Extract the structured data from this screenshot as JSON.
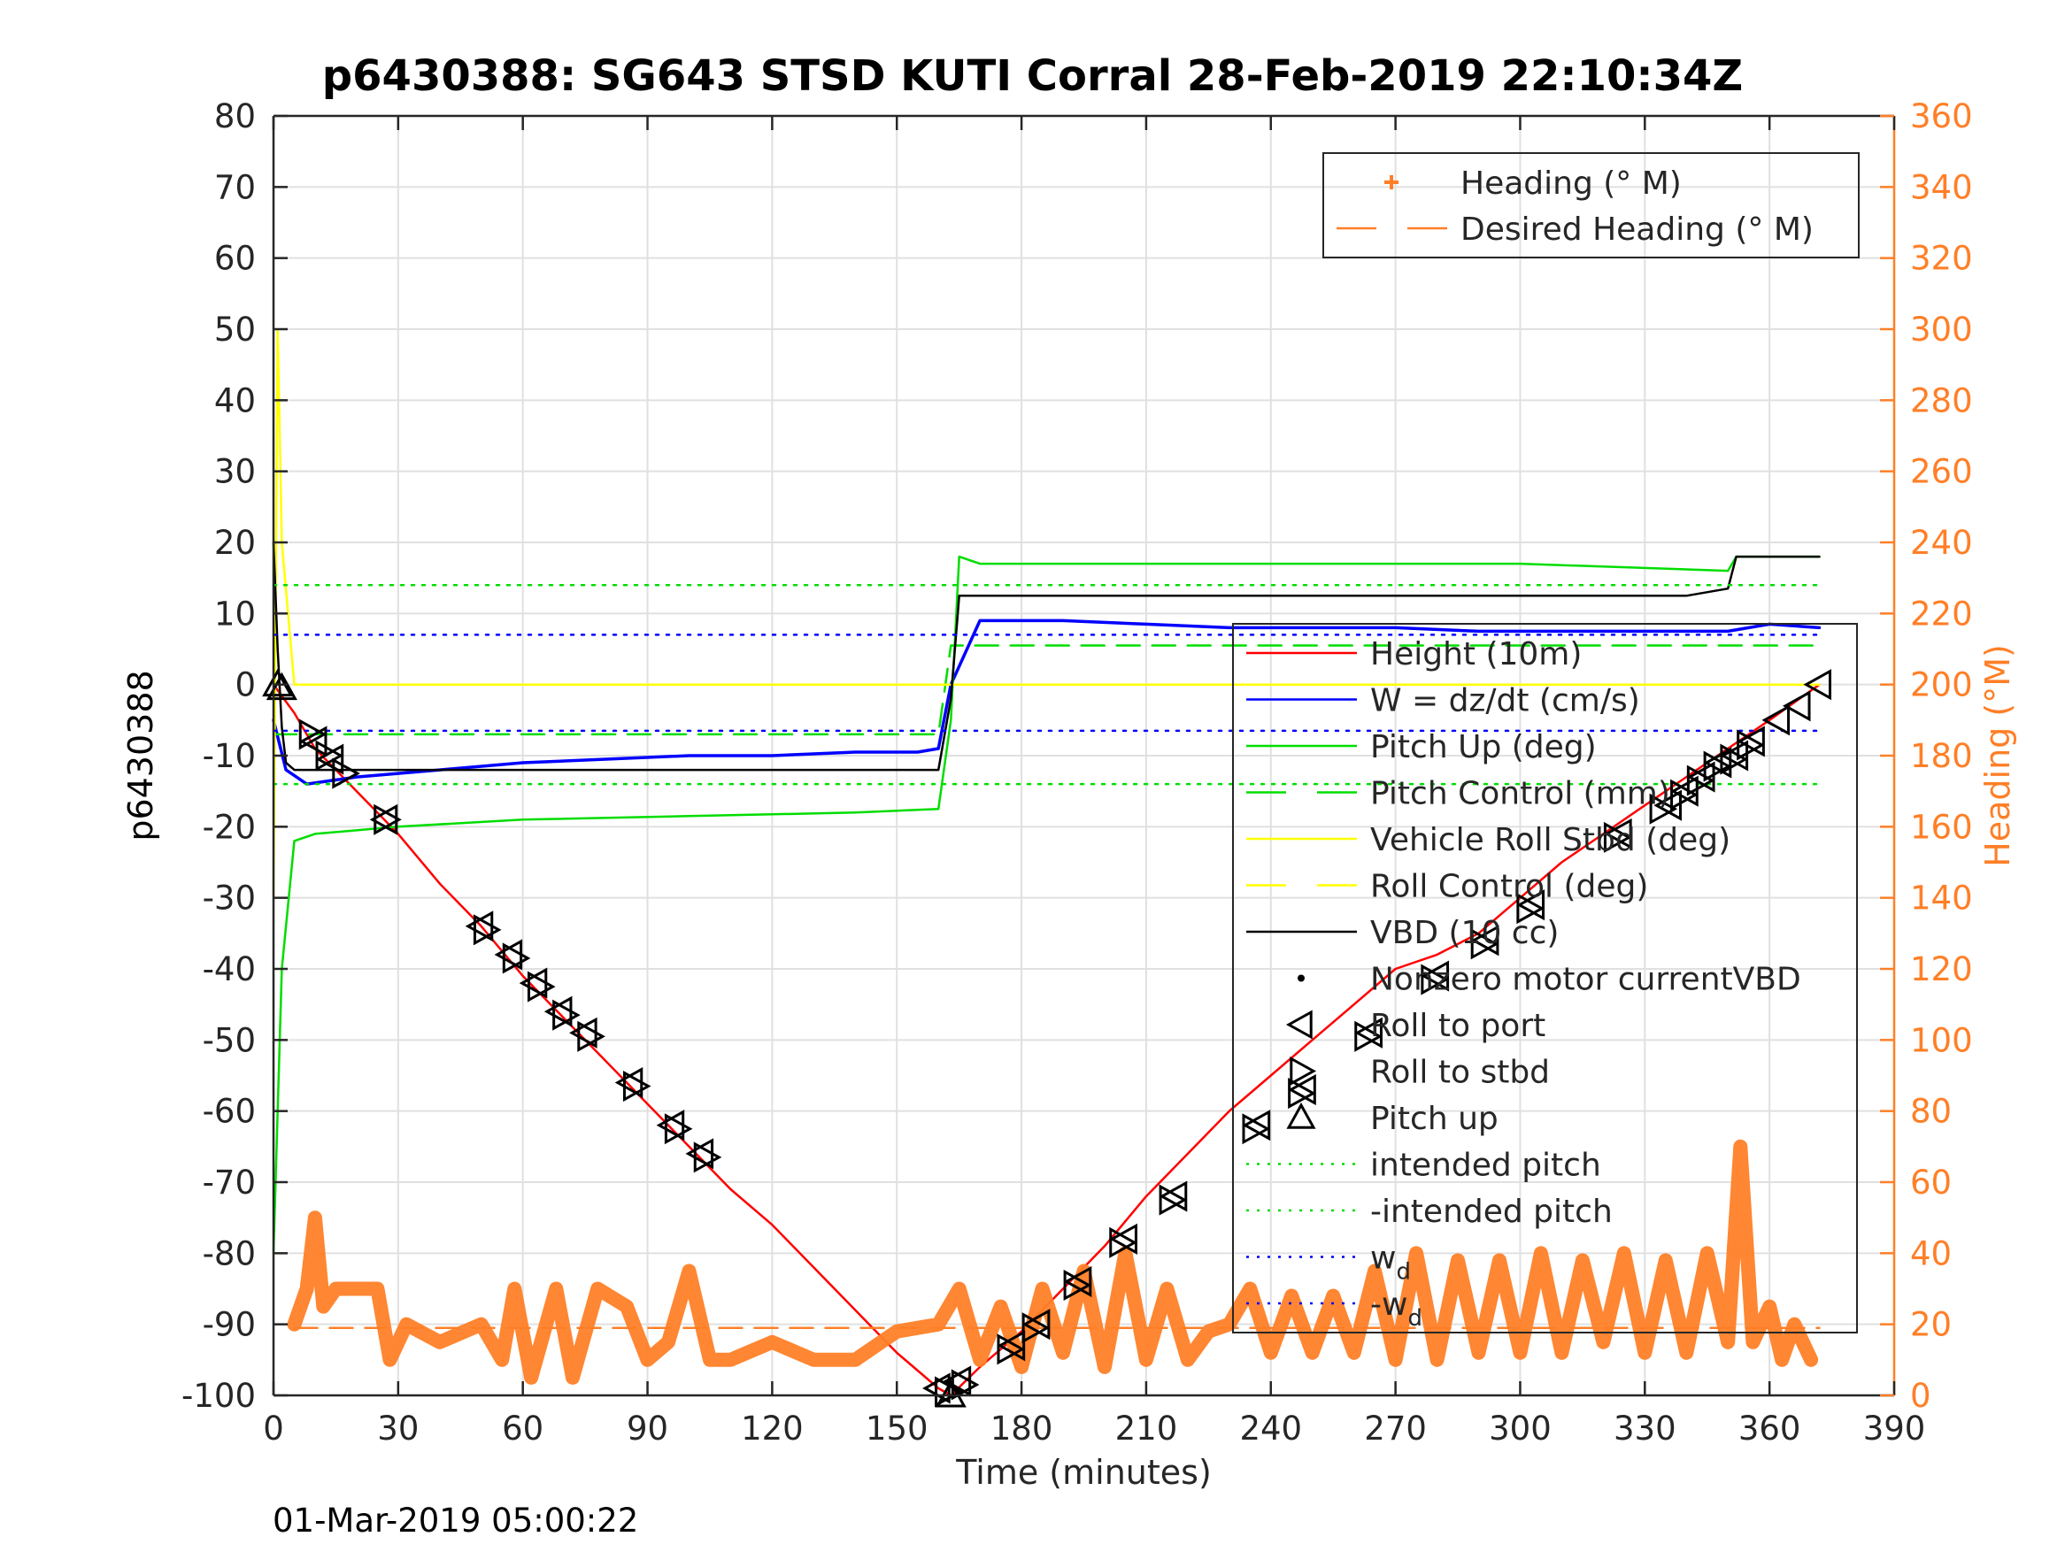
{
  "chart_data": {
    "type": "line",
    "title": "p6430388: SG643 STSD KUTI Corral 28-Feb-2019 22:10:34Z",
    "xlabel": "Time (minutes)",
    "ylabel_left": "p6430388",
    "ylabel_right": "Heading (°M)",
    "footer_text": "01-Mar-2019 05:00:22",
    "xlim": [
      0,
      390
    ],
    "ylim_left": [
      -100,
      80
    ],
    "ylim_right": [
      0,
      360
    ],
    "x_ticks": [
      0,
      30,
      60,
      90,
      120,
      150,
      180,
      210,
      240,
      270,
      300,
      330,
      360,
      390
    ],
    "y_ticks_left": [
      -100,
      -90,
      -80,
      -70,
      -60,
      -50,
      -40,
      -30,
      -20,
      -10,
      0,
      10,
      20,
      30,
      40,
      50,
      60,
      70,
      80
    ],
    "y_ticks_right": [
      0,
      20,
      40,
      60,
      80,
      100,
      120,
      140,
      160,
      180,
      200,
      220,
      240,
      260,
      280,
      300,
      320,
      340,
      360
    ],
    "grid": true,
    "legend_upper": {
      "placement": "top-right",
      "entries": [
        {
          "label": "Heading (° M)",
          "style": "plus",
          "color": "#FF7F27"
        },
        {
          "label": "Desired Heading (° M)",
          "style": "dash",
          "color": "#FF7F27"
        }
      ]
    },
    "legend_lower": {
      "placement": "right",
      "entries": [
        {
          "label": "Height (10m)",
          "style": "solid",
          "color": "#FF0000"
        },
        {
          "label": "W = dz/dt (cm/s)",
          "style": "solid",
          "color": "#0000FF"
        },
        {
          "label": "Pitch Up (deg)",
          "style": "solid",
          "color": "#00DD00"
        },
        {
          "label": "Pitch Control (mm)",
          "style": "dash",
          "color": "#00DD00"
        },
        {
          "label": "Vehicle Roll Stbd (deg)",
          "style": "solid",
          "color": "#FFFF00"
        },
        {
          "label": "Roll Control (deg)",
          "style": "dash",
          "color": "#FFFF00"
        },
        {
          "label": "VBD (10 cc)",
          "style": "solid",
          "color": "#000000"
        },
        {
          "label": "Nonzero motor currentVBD",
          "style": "dot",
          "color": "#000000"
        },
        {
          "label": "Roll to port",
          "style": "tri-left",
          "color": "#000000"
        },
        {
          "label": "Roll to stbd",
          "style": "tri-right",
          "color": "#000000"
        },
        {
          "label": "Pitch up",
          "style": "tri-up",
          "color": "#000000"
        },
        {
          "label": "intended pitch",
          "style": "dotted",
          "color": "#00DD00"
        },
        {
          "label": "-intended pitch",
          "style": "dotted",
          "color": "#00DD00"
        },
        {
          "label": "w",
          "sub": "d",
          "style": "dotted",
          "color": "#0000FF"
        },
        {
          "label": "-w",
          "sub": "d",
          "style": "dotted",
          "color": "#0000FF"
        }
      ]
    },
    "colors": {
      "heading": "#FF7F27",
      "height": "#FF0000",
      "w": "#0000FF",
      "pitch": "#00DD00",
      "roll": "#FFFF00",
      "vbd": "#000000"
    },
    "series": [
      {
        "name": "Height (10m)",
        "axis": "left",
        "color": "#FF0000",
        "x": [
          0,
          5,
          10,
          20,
          30,
          40,
          50,
          60,
          70,
          80,
          90,
          100,
          110,
          120,
          130,
          140,
          150,
          160,
          163,
          170,
          180,
          190,
          200,
          210,
          220,
          230,
          240,
          250,
          260,
          270,
          280,
          290,
          300,
          310,
          320,
          330,
          340,
          350,
          360,
          372
        ],
        "y": [
          0,
          -4,
          -9,
          -15,
          -21,
          -28,
          -34,
          -41,
          -47,
          -53,
          -59,
          -65,
          -71,
          -76,
          -82,
          -88,
          -94,
          -99,
          -100,
          -96,
          -91,
          -85,
          -79,
          -72,
          -66,
          -60,
          -55,
          -50,
          -45,
          -40,
          -38,
          -35,
          -30,
          -25,
          -21,
          -17,
          -13,
          -9,
          -5,
          0
        ]
      },
      {
        "name": "W = dz/dt (cm/s)",
        "axis": "left",
        "color": "#0000FF",
        "x": [
          0,
          3,
          8,
          20,
          40,
          60,
          80,
          100,
          120,
          140,
          155,
          160,
          163,
          170,
          190,
          210,
          230,
          250,
          270,
          290,
          310,
          330,
          350,
          360,
          372
        ],
        "y": [
          -5,
          -12,
          -14,
          -13,
          -12,
          -11,
          -10.5,
          -10,
          -10,
          -9.5,
          -9.5,
          -9,
          0,
          9,
          9,
          8.5,
          8,
          8,
          8,
          7.5,
          7.5,
          7.5,
          7.5,
          8.5,
          8
        ]
      },
      {
        "name": "Pitch Up (deg)",
        "axis": "left",
        "color": "#00DD00",
        "x": [
          0,
          2,
          5,
          10,
          30,
          60,
          100,
          140,
          160,
          163,
          165,
          170,
          200,
          250,
          300,
          350,
          352,
          360,
          372
        ],
        "y": [
          -80,
          -40,
          -22,
          -21,
          -20,
          -19,
          -18.5,
          -18,
          -17.5,
          -5,
          18,
          17,
          17,
          17,
          17,
          16,
          18,
          18,
          18
        ]
      },
      {
        "name": "Pitch Control (mm)",
        "axis": "left",
        "color": "#00DD00",
        "x": [
          0,
          160,
          163,
          372
        ],
        "y": [
          -7,
          -7,
          5.5,
          5.5
        ]
      },
      {
        "name": "Vehicle Roll Stbd (deg)",
        "axis": "left",
        "color": "#FFFF00",
        "x": [
          0,
          1,
          2,
          5,
          10,
          50,
          100,
          160,
          163,
          200,
          250,
          300,
          372
        ],
        "y": [
          -30,
          50,
          20,
          0,
          0,
          0,
          0,
          0,
          0,
          0,
          0,
          0,
          0
        ]
      },
      {
        "name": "VBD (10 cc)",
        "axis": "left",
        "color": "#000000",
        "x": [
          0,
          1,
          2,
          3,
          5,
          10,
          160,
          163,
          165,
          340,
          350,
          352,
          372
        ],
        "y": [
          20,
          5,
          -6,
          -11,
          -12,
          -12,
          -12,
          -2,
          12.5,
          12.5,
          13.5,
          18,
          18
        ]
      },
      {
        "name": "intended pitch",
        "axis": "left",
        "color": "#00DD00",
        "x": [
          0,
          372
        ],
        "y": [
          14,
          14
        ]
      },
      {
        "name": "-intended pitch",
        "axis": "left",
        "color": "#00DD00",
        "x": [
          0,
          372
        ],
        "y": [
          -14,
          -14
        ]
      },
      {
        "name": "w",
        "axis": "left",
        "color": "#0000FF",
        "x": [
          0,
          372
        ],
        "y": [
          7,
          7
        ]
      },
      {
        "name": "-w",
        "axis": "left",
        "color": "#0000FF",
        "x": [
          0,
          372
        ],
        "y": [
          -6.5,
          -6.5
        ]
      },
      {
        "name": "Desired Heading (° M)",
        "axis": "right",
        "color": "#FF7F27",
        "x": [
          5,
          372
        ],
        "y": [
          19,
          19
        ]
      },
      {
        "name": "Heading (° M)",
        "axis": "right",
        "color": "#FF7F27",
        "x": [
          5,
          8,
          10,
          12,
          15,
          20,
          25,
          28,
          32,
          40,
          50,
          55,
          58,
          62,
          68,
          72,
          78,
          85,
          90,
          95,
          100,
          105,
          110,
          120,
          130,
          140,
          150,
          160,
          165,
          170,
          175,
          180,
          185,
          190,
          195,
          200,
          205,
          210,
          215,
          220,
          225,
          230,
          235,
          240,
          245,
          250,
          255,
          260,
          265,
          270,
          275,
          280,
          285,
          290,
          295,
          300,
          305,
          310,
          315,
          320,
          325,
          330,
          335,
          340,
          345,
          350,
          353,
          356,
          360,
          363,
          366,
          370
        ],
        "y": [
          20,
          30,
          50,
          25,
          30,
          30,
          30,
          10,
          20,
          15,
          20,
          10,
          30,
          5,
          30,
          5,
          30,
          25,
          10,
          15,
          35,
          10,
          10,
          15,
          10,
          10,
          18,
          20,
          30,
          10,
          25,
          8,
          30,
          12,
          35,
          8,
          40,
          10,
          30,
          10,
          18,
          20,
          30,
          12,
          28,
          12,
          28,
          12,
          35,
          10,
          40,
          10,
          38,
          12,
          38,
          12,
          40,
          12,
          38,
          15,
          40,
          12,
          38,
          12,
          40,
          15,
          70,
          15,
          25,
          10,
          20,
          10
        ]
      },
      {
        "name": "Roll to port",
        "axis": "left",
        "color": "#000000",
        "x": [
          10,
          14,
          27,
          50,
          57,
          63,
          69,
          75,
          86,
          96,
          103,
          160,
          165,
          178,
          184,
          194,
          205,
          217,
          237,
          248,
          264,
          280,
          292,
          303,
          324,
          336,
          340,
          344,
          348,
          352,
          356,
          362,
          367,
          372
        ],
        "y": [
          -8,
          -10.5,
          -19,
          -34,
          -38,
          -42,
          -46,
          -49,
          -56,
          -62,
          -66,
          -99,
          -98,
          -93,
          -90,
          -84,
          -78,
          -72,
          -62,
          -57,
          -49,
          -41,
          -36,
          -31,
          -21,
          -17,
          -15,
          -13,
          -11,
          -10,
          -8,
          -5,
          -3,
          0
        ]
      },
      {
        "name": "Roll to stbd",
        "axis": "left",
        "color": "#000000",
        "x": [
          9,
          13,
          17,
          27,
          51,
          58,
          64,
          70,
          76,
          87,
          97,
          104,
          162,
          166,
          177,
          183,
          193,
          204,
          216,
          236,
          247,
          263,
          279,
          291,
          302,
          323,
          334,
          339,
          343,
          347,
          351,
          355
        ],
        "y": [
          -7,
          -10,
          -12.5,
          -19,
          -34.5,
          -38.5,
          -42.5,
          -46.5,
          -49.5,
          -56.5,
          -62.5,
          -66.5,
          -99.5,
          -98.5,
          -93.5,
          -90.5,
          -84.5,
          -78.5,
          -72.5,
          -62.5,
          -57.5,
          -49.5,
          -41.5,
          -36.5,
          -31.5,
          -21.5,
          -17.5,
          -15.5,
          -13.5,
          -11.5,
          -10.5,
          -8.5
        ]
      },
      {
        "name": "Pitch up",
        "axis": "left",
        "color": "#000000",
        "x": [
          1,
          2,
          163
        ],
        "y": [
          0,
          -0.5,
          -100
        ]
      }
    ]
  }
}
